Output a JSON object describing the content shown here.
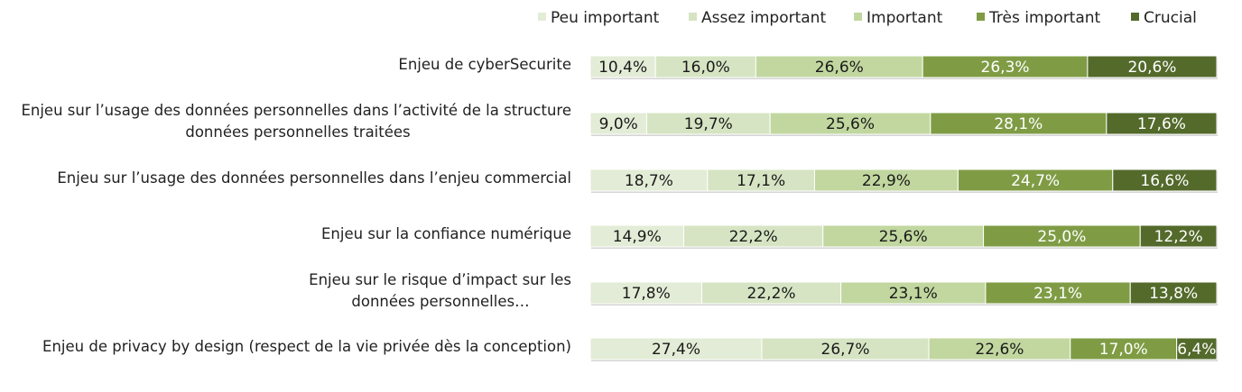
{
  "chart_data": {
    "type": "bar",
    "orientation": "horizontal",
    "stacked": "100%",
    "title": "",
    "xlabel": "",
    "ylabel": "",
    "legend_position": "top-right",
    "grid": false,
    "categories": [
      [
        "Enjeu de cyberSecurite"
      ],
      [
        "Enjeu sur l’usage des données personnelles dans l’activité de la structure",
        "données personnelles traitées"
      ],
      [
        "Enjeu sur l’usage des données personnelles dans l’enjeu commercial"
      ],
      [
        "Enjeu sur la confiance numérique"
      ],
      [
        "Enjeu sur le risque d’impact sur les",
        "données personnelles…"
      ],
      [
        "Enjeu de privacy by design  (respect de la vie privée dès la conception)"
      ]
    ],
    "series": [
      {
        "name": "Peu important",
        "color": "#e3ecd6",
        "text_color": "#1a1a1a",
        "values": [
          10.4,
          9.0,
          18.7,
          14.9,
          17.8,
          27.4
        ],
        "labels": [
          "10,4%",
          "9,0%",
          "18,7%",
          "14,9%",
          "17,8%",
          "27,4%"
        ]
      },
      {
        "name": "Assez important",
        "color": "#d6e4c3",
        "text_color": "#1a1a1a",
        "values": [
          16.0,
          19.7,
          17.1,
          22.2,
          22.2,
          26.7
        ],
        "labels": [
          "16,0%",
          "19,7%",
          "17,1%",
          "22,2%",
          "22,2%",
          "26,7%"
        ]
      },
      {
        "name": "Important",
        "color": "#c1d79f",
        "text_color": "#1a1a1a",
        "values": [
          26.6,
          25.6,
          22.9,
          25.6,
          23.1,
          22.6
        ],
        "labels": [
          "26,6%",
          "25,6%",
          "22,9%",
          "25,6%",
          "23,1%",
          "22,6%"
        ]
      },
      {
        "name": "Très important",
        "color": "#7f9c45",
        "text_color": "#ffffff",
        "values": [
          26.3,
          28.1,
          24.7,
          25.0,
          23.1,
          17.0
        ],
        "labels": [
          "26,3%",
          "28,1%",
          "24,7%",
          "25,0%",
          "23,1%",
          "17,0%"
        ]
      },
      {
        "name": "Crucial",
        "color": "#536a2b",
        "text_color": "#ffffff",
        "values": [
          20.6,
          17.6,
          16.6,
          12.2,
          13.8,
          6.4
        ],
        "labels": [
          "20,6%",
          "17,6%",
          "16,6%",
          "12,2%",
          "13,8%",
          "6,4%"
        ]
      }
    ]
  }
}
